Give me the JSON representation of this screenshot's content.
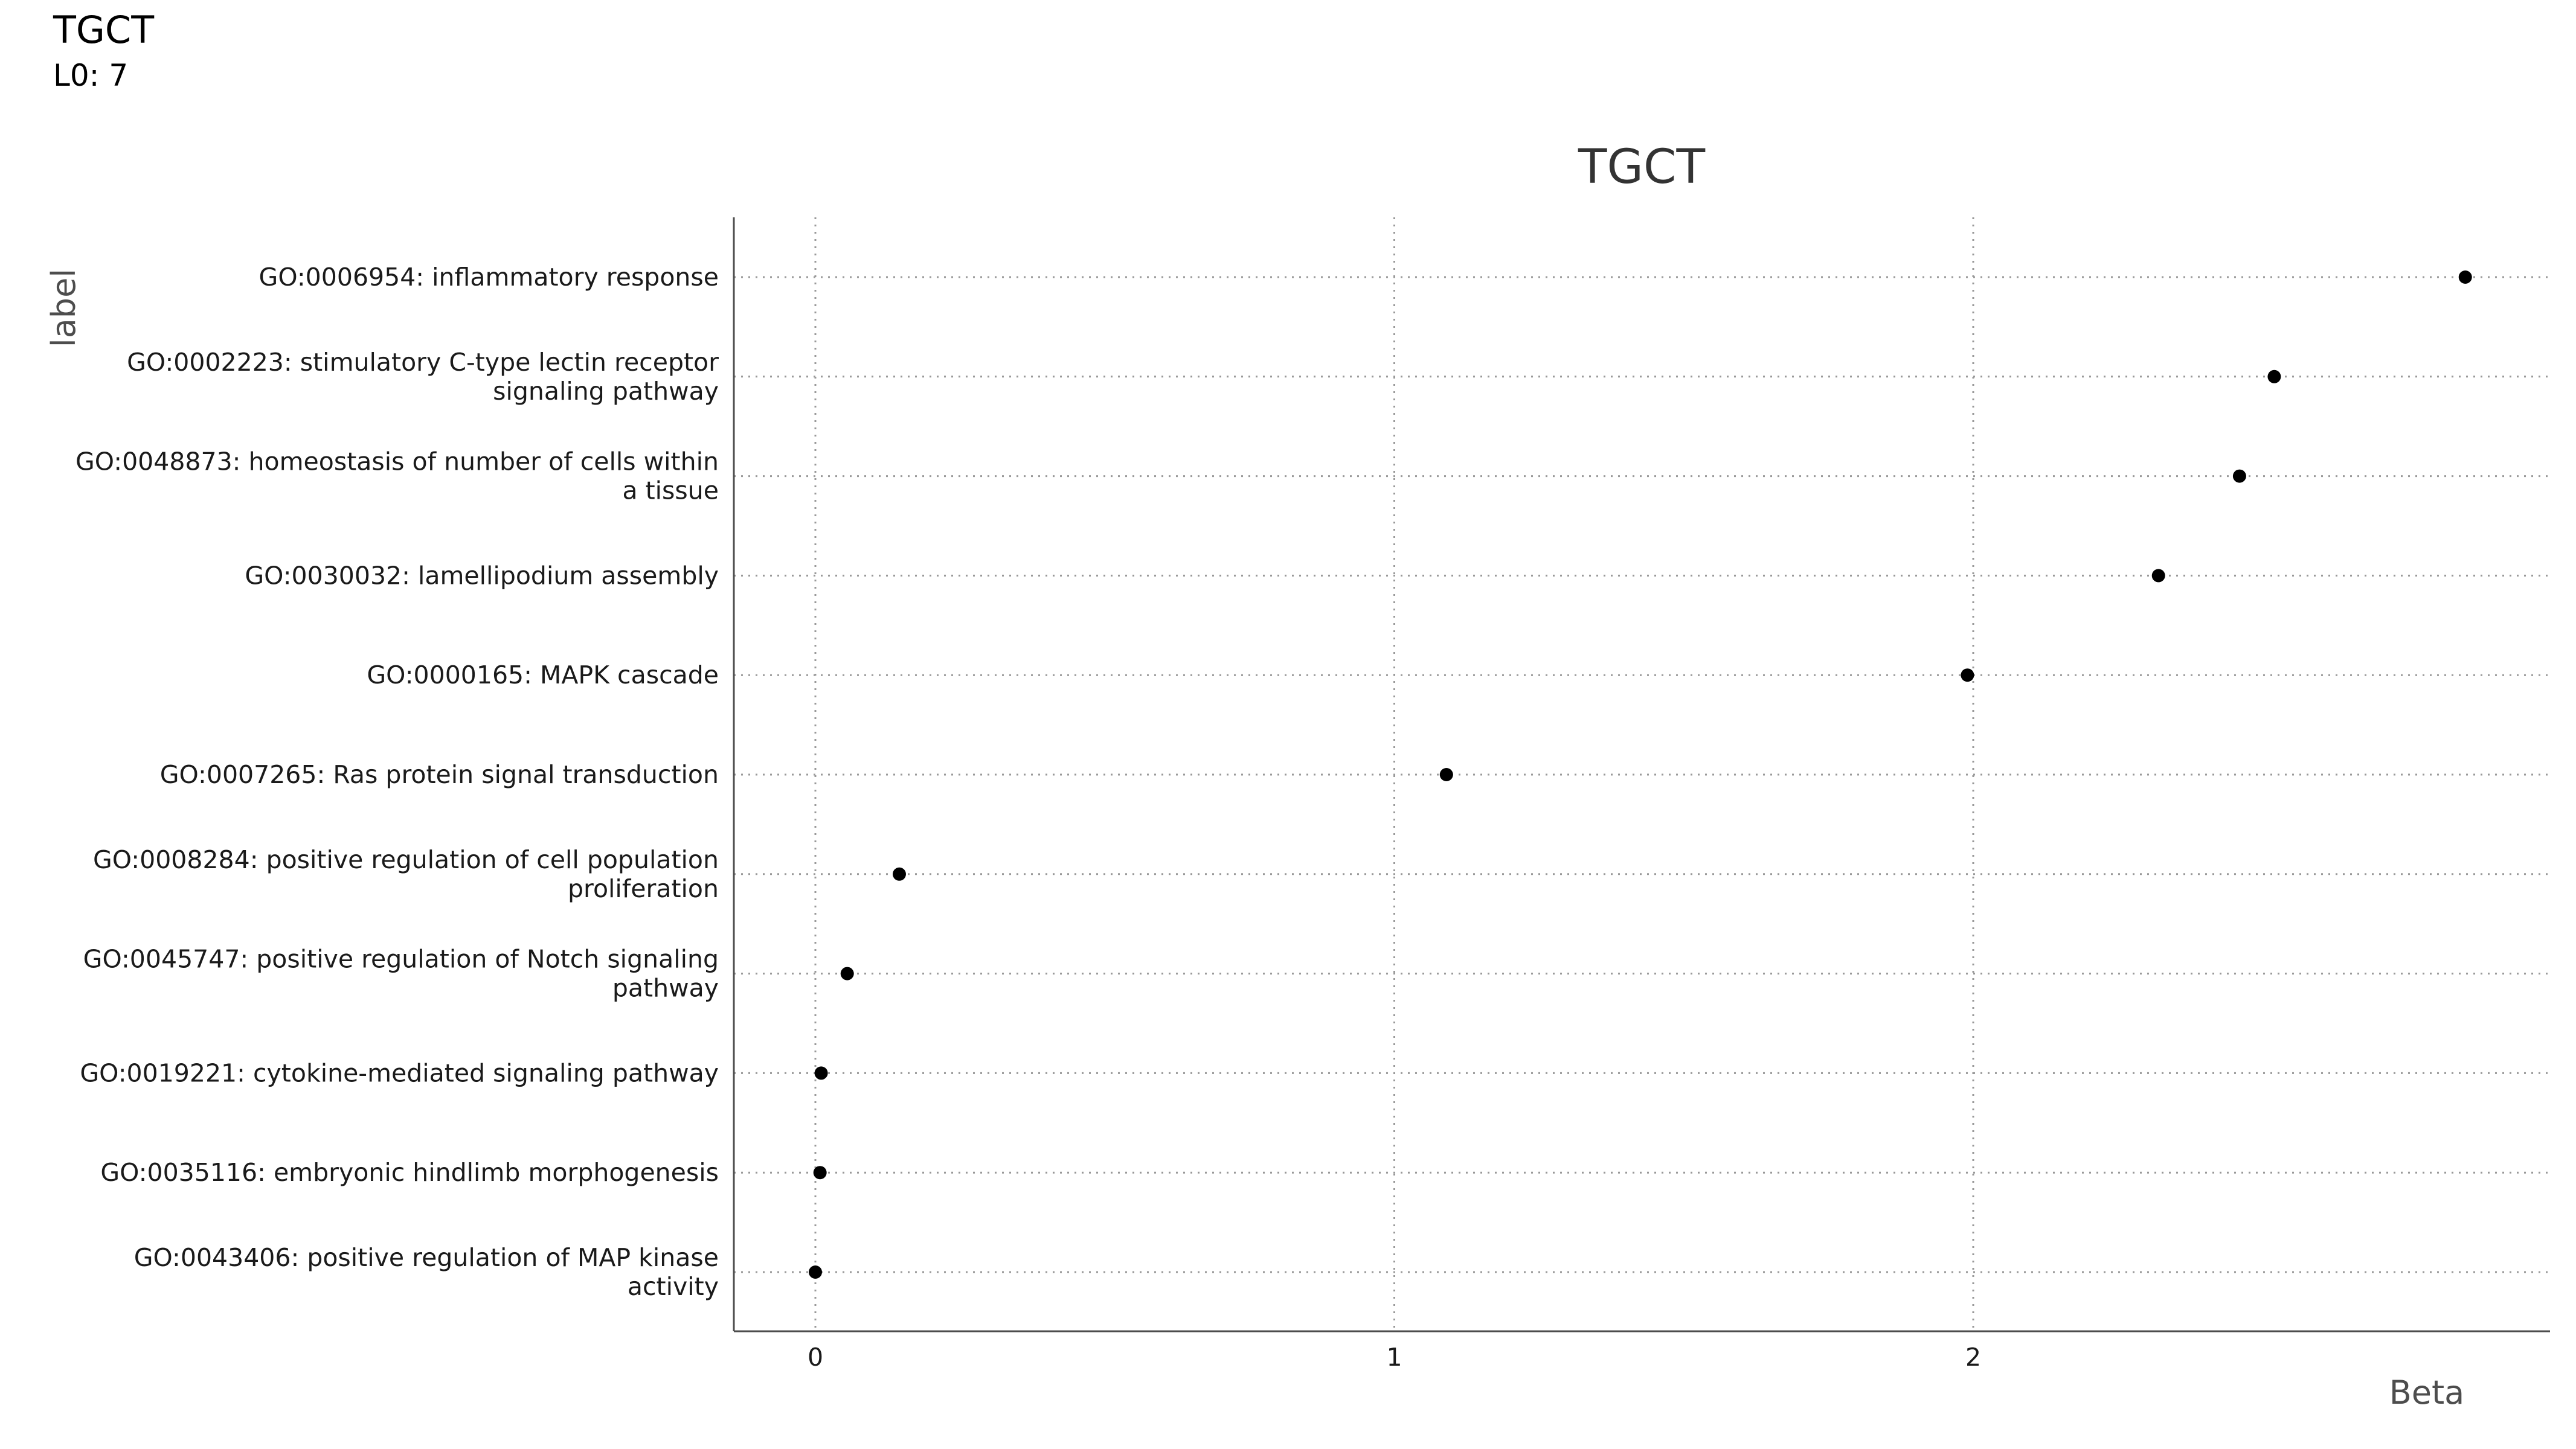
{
  "header": {
    "title": "TGCT",
    "subtitle": "L0: 7"
  },
  "chart_data": {
    "type": "scatter",
    "title": "TGCT",
    "xlabel": "Beta",
    "ylabel": "label",
    "xlim": [
      -0.14,
      3.0
    ],
    "x_ticks": [
      0,
      1,
      2
    ],
    "grid": true,
    "point_color": "#000000",
    "grid_color": "#999999",
    "points": [
      {
        "label": [
          "GO:0006954: inflammatory response"
        ],
        "x": 2.85
      },
      {
        "label": [
          "GO:0002223: stimulatory C-type lectin receptor",
          "signaling pathway"
        ],
        "x": 2.52
      },
      {
        "label": [
          "GO:0048873: homeostasis of number of cells within",
          "a tissue"
        ],
        "x": 2.46
      },
      {
        "label": [
          "GO:0030032: lamellipodium assembly"
        ],
        "x": 2.32
      },
      {
        "label": [
          "GO:0000165: MAPK cascade"
        ],
        "x": 1.99
      },
      {
        "label": [
          "GO:0007265: Ras protein signal transduction"
        ],
        "x": 1.09
      },
      {
        "label": [
          "GO:0008284: positive regulation of cell population",
          "proliferation"
        ],
        "x": 0.145
      },
      {
        "label": [
          "GO:0045747: positive regulation of Notch signaling",
          "pathway"
        ],
        "x": 0.055
      },
      {
        "label": [
          "GO:0019221: cytokine-mediated signaling pathway"
        ],
        "x": 0.01
      },
      {
        "label": [
          "GO:0035116: embryonic hindlimb morphogenesis"
        ],
        "x": 0.008
      },
      {
        "label": [
          "GO:0043406: positive regulation of MAP kinase",
          "activity"
        ],
        "x": 0.0
      }
    ]
  }
}
